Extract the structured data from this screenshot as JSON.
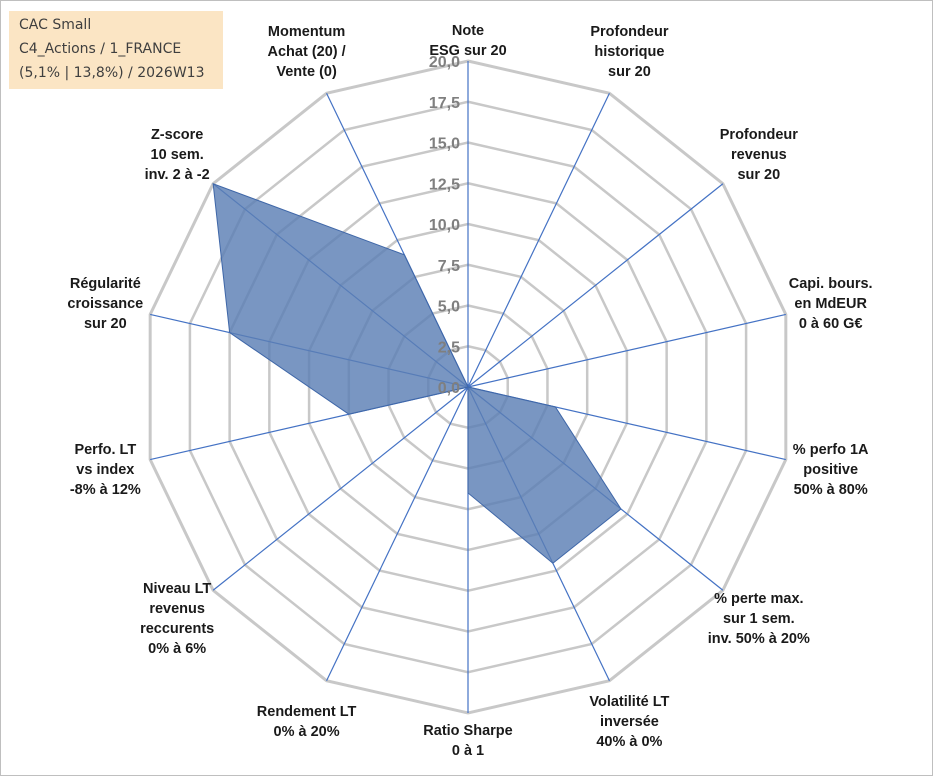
{
  "info_box": {
    "line1": "CAC Small",
    "line2": "C4_Actions / 1_FRANCE",
    "line3": "(5,1% | 13,8%) / 2026W13"
  },
  "colors": {
    "grid": "#c8c8c8",
    "spoke": "#4472c4",
    "fill": "#5b7fb5",
    "stroke": "#3f67a8",
    "tick": "#7f7f7f",
    "label": "#1a1a1a",
    "info_bg": "#fbe5c4"
  },
  "chart_data": {
    "type": "radar",
    "title": "",
    "scale": {
      "min": 0,
      "max": 20,
      "step": 2.5
    },
    "tick_labels": [
      "0,0",
      "2,5",
      "5,0",
      "7,5",
      "10,0",
      "12,5",
      "15,0",
      "17,5",
      "20,0"
    ],
    "categories": [
      {
        "lines": [
          "Note",
          "ESG sur 20"
        ]
      },
      {
        "lines": [
          "Profondeur",
          "historique",
          "sur 20"
        ]
      },
      {
        "lines": [
          "Profondeur",
          "revenus",
          "sur 20"
        ]
      },
      {
        "lines": [
          "Capi. bours.",
          "en MdEUR",
          "0 à 60 G€"
        ]
      },
      {
        "lines": [
          "% perfo 1A",
          "positive",
          "50% à 80%"
        ]
      },
      {
        "lines": [
          "% perte max.",
          "sur 1 sem.",
          "inv. 50% à 20%"
        ]
      },
      {
        "lines": [
          "Volatilité LT",
          "inversée",
          "40% à 0%"
        ]
      },
      {
        "lines": [
          "Ratio Sharpe",
          "0 à 1"
        ]
      },
      {
        "lines": [
          "Rendement LT",
          "0% à 20%"
        ]
      },
      {
        "lines": [
          "Niveau LT",
          "revenus",
          "reccurents",
          "0% à 6%"
        ]
      },
      {
        "lines": [
          "Perfo. LT",
          "vs index",
          "-8% à 12%"
        ]
      },
      {
        "lines": [
          "Régularité",
          "croissance",
          "sur 20"
        ]
      },
      {
        "lines": [
          "Z-score",
          "10 sem.",
          "inv. 2 à -2"
        ]
      },
      {
        "lines": [
          "Momentum",
          "Achat (20) /",
          "Vente (0)"
        ]
      }
    ],
    "series": [
      {
        "name": "CAC Small",
        "values": [
          0,
          0,
          0,
          0,
          5.5,
          12.0,
          12.0,
          6.5,
          0,
          0,
          7.5,
          15.0,
          20.0,
          9.0
        ]
      }
    ]
  }
}
